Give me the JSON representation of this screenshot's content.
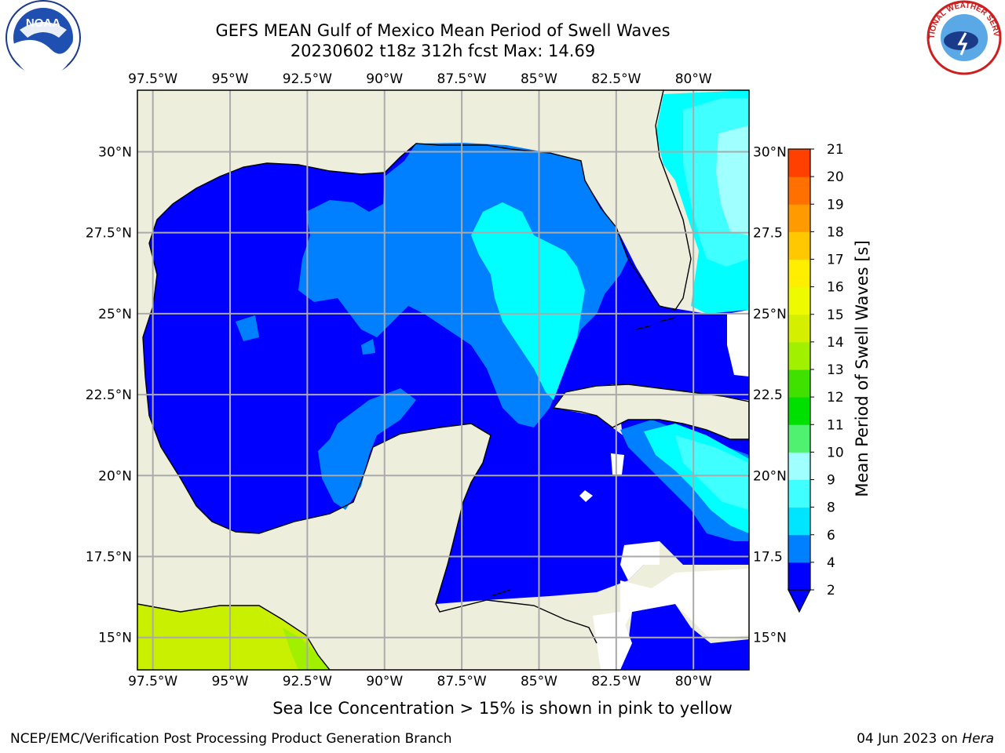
{
  "title": {
    "line1": "GEFS MEAN Gulf of Mexico Mean Period of Swell Waves",
    "line2": "20230602 t18z 312h fcst   Max: 14.69"
  },
  "axes": {
    "lon_labels": [
      "97.5°W",
      "95°W",
      "92.5°W",
      "90°W",
      "87.5°W",
      "85°W",
      "82.5°W",
      "80°W"
    ],
    "lon_values": [
      -97.5,
      -95,
      -92.5,
      -90,
      -87.5,
      -85,
      -82.5,
      -80
    ],
    "lat_labels_left": [
      "30°N",
      "27.5°N",
      "25°N",
      "22.5°N",
      "20°N",
      "17.5°N",
      "15°N"
    ],
    "lat_labels_right": [
      "30°N",
      "27.5",
      "25°N",
      "22.5",
      "20°N",
      "17.5",
      "15°N"
    ],
    "lat_values": [
      30,
      27.5,
      25,
      22.5,
      20,
      17.5,
      15
    ],
    "lon_range": [
      -98,
      -78.2
    ],
    "lat_range": [
      14,
      31.9
    ],
    "grid": true
  },
  "colorbar": {
    "label": "Mean Period of Swell Waves [s]",
    "ticks": [
      "2",
      "4",
      "6",
      "8",
      "9",
      "10",
      "11",
      "12",
      "13",
      "14",
      "15",
      "16",
      "17",
      "18",
      "19",
      "20",
      "21"
    ],
    "colors": [
      "#0000ff",
      "#0080ff",
      "#00e5ff",
      "#40ffff",
      "#a0ffff",
      "#50f070",
      "#00e000",
      "#40e000",
      "#a0f000",
      "#d4f000",
      "#eefa00",
      "#ffee00",
      "#ffc800",
      "#ff9a00",
      "#ff7000",
      "#ff4000",
      "#ff0000"
    ],
    "extend": "min"
  },
  "colors": {
    "land": "#eeeedd",
    "ocean_min": "#0000ff",
    "swell_4": "#0080ff",
    "swell_6": "#00ffff",
    "swell_8": "#40ffff",
    "swell_9": "#a0ffff",
    "ice_green": "#c8f000"
  },
  "logos": {
    "left": "NOAA",
    "right": "NATIONAL WEATHER SERVICE"
  },
  "caption": "Sea Ice Concentration > 15% is shown in pink to yellow",
  "footer": {
    "left": "NCEP/EMC/Verification Post Processing Product Generation Branch",
    "date": "04 Jun 2023 on ",
    "machine": "Hera"
  }
}
